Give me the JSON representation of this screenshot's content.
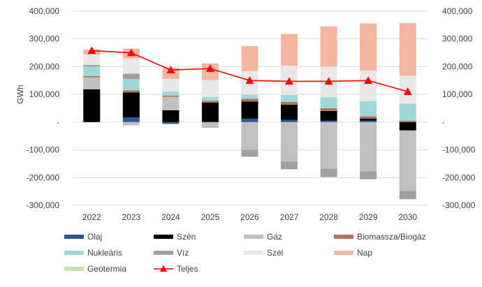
{
  "chart_data": {
    "type": "bar",
    "subtype": "stacked-bar-with-line",
    "title": "",
    "xlabel": "",
    "ylabel": "GWh",
    "ylim": [
      -300000,
      400000
    ],
    "yticks": [
      400000,
      300000,
      200000,
      100000,
      0,
      -100000,
      -200000,
      -300000
    ],
    "ytick_labels": [
      "400,000",
      "300,000",
      "200,000",
      "100,000",
      "-",
      "-100,000",
      "-200,000",
      "-300,000"
    ],
    "categories": [
      "2022",
      "2023",
      "2024",
      "2025",
      "2026",
      "2027",
      "2028",
      "2029",
      "2030"
    ],
    "series": [
      {
        "name": "Olaj",
        "color": "#2f5597",
        "values": [
          0,
          17000,
          -5000,
          0,
          12000,
          8000,
          5000,
          5000,
          0
        ]
      },
      {
        "name": "Szén",
        "color": "#000000",
        "values": [
          118000,
          90000,
          43000,
          70000,
          62000,
          55000,
          35000,
          8000,
          -30000
        ]
      },
      {
        "name": "Gáz",
        "color": "#c0c0c0",
        "values": [
          43000,
          -12000,
          48000,
          -18000,
          -100000,
          -142000,
          -168000,
          -178000,
          -218000
        ]
      },
      {
        "name": "Biomassza/Biogáz",
        "color": "#b57260",
        "values": [
          5000,
          8000,
          5000,
          7000,
          10000,
          10000,
          10000,
          8000,
          5000
        ]
      },
      {
        "name": "Nukleáris",
        "color": "#9fd8d8",
        "values": [
          35000,
          40000,
          15000,
          13000,
          15000,
          25000,
          40000,
          55000,
          62000
        ]
      },
      {
        "name": "Víz",
        "color": "#a0a0a0",
        "values": [
          5000,
          20000,
          -3000,
          -2000,
          -25000,
          -28000,
          -30000,
          -28000,
          -30000
        ]
      },
      {
        "name": "Szél",
        "color": "#e8e8e8",
        "values": [
          38000,
          55000,
          45000,
          62000,
          85000,
          105000,
          110000,
          110000,
          100000
        ]
      },
      {
        "name": "Nap",
        "color": "#f4b6a0",
        "values": [
          18000,
          35000,
          40000,
          60000,
          90000,
          115000,
          145000,
          170000,
          190000
        ]
      },
      {
        "name": "Geotermia",
        "color": "#c6e5b3",
        "values": [
          0,
          0,
          0,
          0,
          0,
          0,
          0,
          0,
          0
        ]
      }
    ],
    "line": {
      "name": "Teljes",
      "color": "#ff0000",
      "marker": "triangle",
      "values": [
        258000,
        250000,
        188000,
        193000,
        150000,
        147000,
        147000,
        150000,
        110000
      ]
    },
    "legend": {
      "position": "bottom",
      "order": [
        "Olaj",
        "Szén",
        "Gáz",
        "Biomassza/Biogáz",
        "Nukleáris",
        "Víz",
        "Szél",
        "Nap",
        "Geotermia",
        "Teljes"
      ]
    },
    "grid": true,
    "secondary_axis": true
  }
}
